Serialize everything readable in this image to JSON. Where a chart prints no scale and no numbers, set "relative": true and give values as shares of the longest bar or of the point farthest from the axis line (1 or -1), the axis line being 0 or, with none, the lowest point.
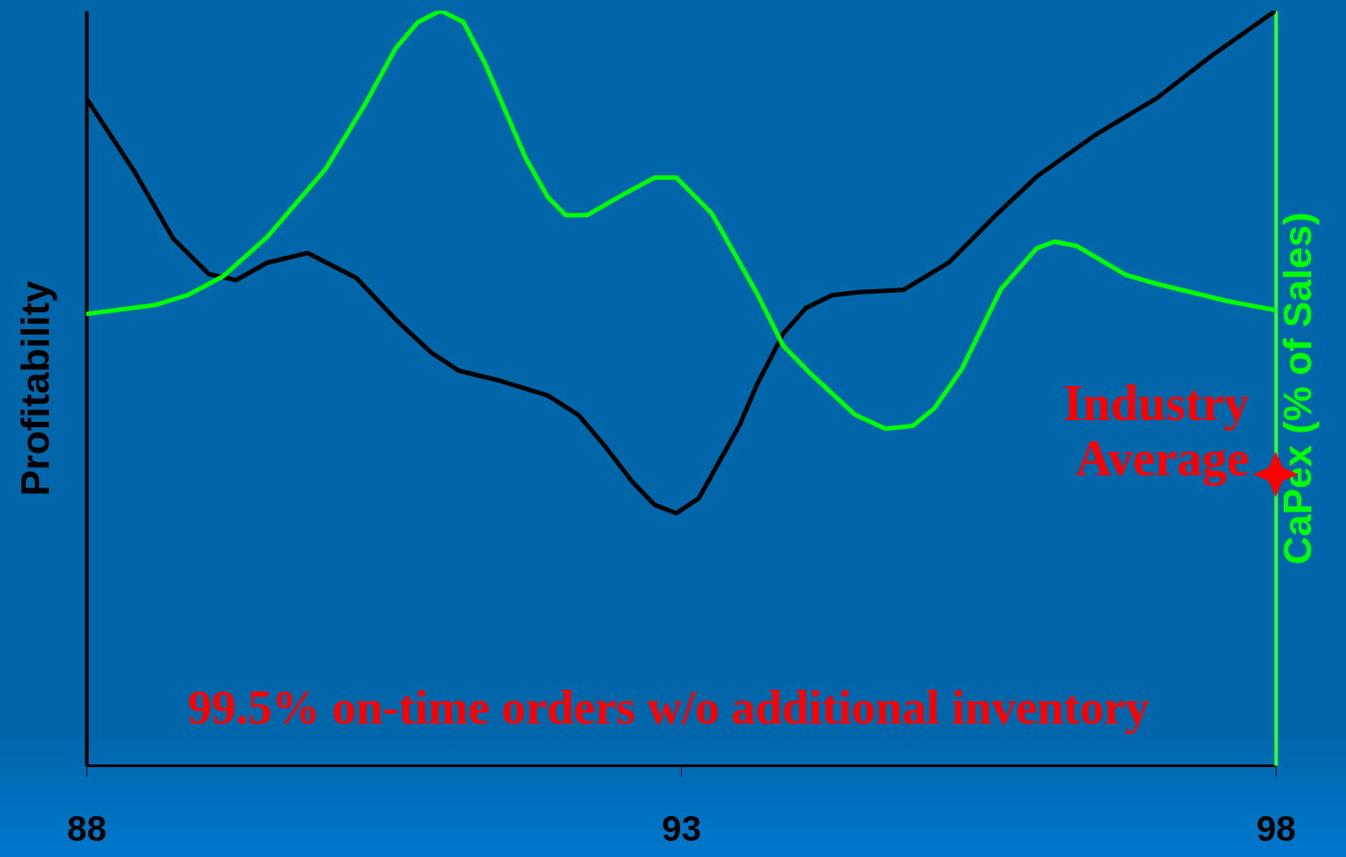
{
  "chart_data": {
    "type": "line",
    "relative": true,
    "xlabel": null,
    "ylabel": "Profitability",
    "y2label": "CaPex (% of Sales)",
    "xlim": [
      88,
      98
    ],
    "xticks": [
      88,
      93,
      98
    ],
    "grid": false,
    "marker": "none",
    "line_style": "solid",
    "series": [
      {
        "color": "#000000",
        "x": [
          88.0,
          88.4,
          88.73,
          89.03,
          89.26,
          89.52,
          89.86,
          90.27,
          90.6,
          90.9,
          91.13,
          91.47,
          91.88,
          92.14,
          92.36,
          92.59,
          92.78,
          92.96,
          93.15,
          93.49,
          93.64,
          93.86,
          94.05,
          94.27,
          94.5,
          94.87,
          95.25,
          95.66,
          95.99,
          96.48,
          97.0,
          97.45,
          98.0
        ],
        "values": [
          0.884,
          0.788,
          0.698,
          0.651,
          0.643,
          0.666,
          0.679,
          0.646,
          0.591,
          0.547,
          0.523,
          0.51,
          0.49,
          0.464,
          0.423,
          0.376,
          0.345,
          0.334,
          0.354,
          0.45,
          0.505,
          0.572,
          0.606,
          0.623,
          0.627,
          0.63,
          0.666,
          0.731,
          0.78,
          0.835,
          0.884,
          0.939,
          1.0
        ]
      },
      {
        "color": "#00ff00",
        "axis": "y2",
        "x": [
          88.0,
          88.58,
          88.85,
          89.15,
          89.52,
          90.01,
          90.34,
          90.6,
          90.79,
          90.98,
          91.17,
          91.35,
          91.69,
          91.88,
          92.03,
          92.21,
          92.51,
          92.78,
          92.96,
          93.26,
          93.64,
          93.86,
          94.09,
          94.46,
          94.72,
          94.95,
          95.13,
          95.36,
          95.69,
          95.99,
          96.14,
          96.33,
          96.74,
          97.0,
          97.6,
          98.0
        ],
        "values": [
          0.598,
          0.61,
          0.623,
          0.648,
          0.7,
          0.79,
          0.875,
          0.95,
          0.985,
          1.0,
          0.985,
          0.931,
          0.806,
          0.753,
          0.729,
          0.729,
          0.756,
          0.779,
          0.779,
          0.731,
          0.625,
          0.556,
          0.519,
          0.465,
          0.446,
          0.45,
          0.473,
          0.525,
          0.631,
          0.685,
          0.694,
          0.688,
          0.65,
          0.638,
          0.615,
          0.603
        ]
      }
    ],
    "annotations": [
      "Industry Average",
      "99.5% on-time orders w/o additional inventory"
    ]
  }
}
